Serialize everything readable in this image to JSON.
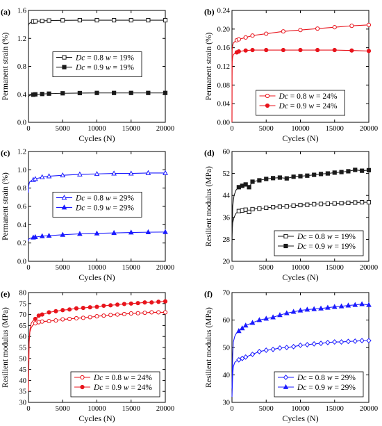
{
  "figure": {
    "colors": {
      "black": "#1a1a1a",
      "red": "#e8141c",
      "blue": "#1a1aff"
    }
  },
  "chart_data": [
    {
      "panel": "(a)",
      "type": "line",
      "xlabel": "Cycles (N)",
      "ylabel": "Permanent strain (%)",
      "xlim": [
        0,
        20000
      ],
      "ylim": [
        0.0,
        1.6
      ],
      "xticks": [
        "0",
        "5000",
        "10000",
        "15000",
        "20000"
      ],
      "yticks": [
        "0.0",
        "0.4",
        "0.8",
        "1.2",
        "1.6"
      ],
      "legend_position": "center-right",
      "series": [
        {
          "name": "Dc = 0.8 w = 19%",
          "color": "#1a1a1a",
          "marker": "open-square",
          "x": [
            0,
            30,
            100,
            200,
            400,
            700,
            1000,
            2000,
            3000,
            5000,
            7500,
            10000,
            12500,
            15000,
            17500,
            20000
          ],
          "y": [
            1.37,
            1.4,
            1.41,
            1.42,
            1.43,
            1.44,
            1.445,
            1.45,
            1.455,
            1.458,
            1.46,
            1.46,
            1.46,
            1.46,
            1.46,
            1.46
          ]
        },
        {
          "name": "Dc = 0.9 w = 19%",
          "color": "#1a1a1a",
          "marker": "filled-square",
          "x": [
            0,
            30,
            100,
            200,
            400,
            700,
            1000,
            2000,
            3000,
            5000,
            7500,
            10000,
            12500,
            15000,
            17500,
            20000
          ],
          "y": [
            0.35,
            0.37,
            0.38,
            0.385,
            0.39,
            0.395,
            0.4,
            0.405,
            0.41,
            0.415,
            0.418,
            0.42,
            0.42,
            0.42,
            0.42,
            0.42
          ]
        }
      ]
    },
    {
      "panel": "(b)",
      "type": "line",
      "xlabel": "Cycles (N)",
      "ylabel": "Permanent strain (%)",
      "xlim": [
        0,
        20000
      ],
      "ylim": [
        0.0,
        0.24
      ],
      "xticks": [
        "0",
        "5000",
        "10000",
        "15000",
        "20000"
      ],
      "yticks": [
        "0.00",
        "0.04",
        "0.08",
        "0.12",
        "0.16",
        "0.20",
        "0.24"
      ],
      "legend_position": "lower-center",
      "series": [
        {
          "name": "Dc = 0.8 w = 24%",
          "color": "#e8141c",
          "marker": "open-circle",
          "x": [
            0,
            10,
            30,
            100,
            200,
            400,
            700,
            1000,
            2000,
            3000,
            5000,
            7500,
            10000,
            12500,
            15000,
            17500,
            20000
          ],
          "y": [
            0.0,
            0.12,
            0.155,
            0.165,
            0.17,
            0.173,
            0.176,
            0.178,
            0.182,
            0.186,
            0.19,
            0.195,
            0.198,
            0.201,
            0.204,
            0.207,
            0.209
          ]
        },
        {
          "name": "Dc = 0.9 w = 24%",
          "color": "#e8141c",
          "marker": "filled-circle",
          "x": [
            0,
            10,
            30,
            100,
            200,
            400,
            700,
            1000,
            2000,
            3000,
            5000,
            7500,
            10000,
            12500,
            15000,
            17500,
            20000
          ],
          "y": [
            0.0,
            0.1,
            0.13,
            0.14,
            0.145,
            0.148,
            0.15,
            0.152,
            0.154,
            0.155,
            0.155,
            0.155,
            0.155,
            0.155,
            0.155,
            0.154,
            0.153
          ]
        }
      ]
    },
    {
      "panel": "(c)",
      "type": "line",
      "xlabel": "Cycles (N)",
      "ylabel": "Permanent strain (%)",
      "xlim": [
        0,
        20000
      ],
      "ylim": [
        0.0,
        1.2
      ],
      "xticks": [
        "0",
        "5000",
        "10000",
        "15000",
        "20000"
      ],
      "yticks": [
        "0.0",
        "0.2",
        "0.4",
        "0.6",
        "0.8",
        "1.0",
        "1.2"
      ],
      "legend_position": "center-right",
      "series": [
        {
          "name": "Dc = 0.8 w = 29%",
          "color": "#1a1aff",
          "marker": "open-triangle",
          "x": [
            0,
            30,
            100,
            200,
            400,
            700,
            1000,
            2000,
            3000,
            5000,
            7500,
            10000,
            12500,
            15000,
            17500,
            20000
          ],
          "y": [
            0.75,
            0.82,
            0.85,
            0.87,
            0.88,
            0.89,
            0.9,
            0.92,
            0.93,
            0.94,
            0.95,
            0.955,
            0.96,
            0.96,
            0.965,
            0.965
          ]
        },
        {
          "name": "Dc = 0.9 w = 29%",
          "color": "#1a1aff",
          "marker": "filled-triangle",
          "x": [
            0,
            30,
            100,
            200,
            400,
            700,
            1000,
            2000,
            3000,
            5000,
            7500,
            10000,
            12500,
            15000,
            17500,
            20000
          ],
          "y": [
            0.22,
            0.24,
            0.245,
            0.25,
            0.255,
            0.26,
            0.265,
            0.275,
            0.28,
            0.29,
            0.3,
            0.305,
            0.31,
            0.315,
            0.318,
            0.32
          ]
        }
      ]
    },
    {
      "panel": "(d)",
      "type": "line",
      "xlabel": "Cycles (N)",
      "ylabel": "Resilient modulus (MPa)",
      "xlim": [
        0,
        20000
      ],
      "ylim": [
        20,
        60
      ],
      "xticks": [
        "0",
        "5000",
        "10000",
        "15000",
        "20000"
      ],
      "yticks": [
        "20",
        "28",
        "36",
        "44",
        "52",
        "60"
      ],
      "legend_position": "lower-right",
      "series": [
        {
          "name": "Dc = 0.8 w = 19%",
          "color": "#1a1a1a",
          "marker": "open-square",
          "x": [
            0,
            100,
            300,
            600,
            1000,
            1500,
            2000,
            2500,
            3000,
            4000,
            5000,
            6000,
            7000,
            8000,
            9000,
            10000,
            11000,
            12000,
            13000,
            14000,
            15000,
            16000,
            17000,
            18000,
            19000,
            20000
          ],
          "y": [
            30,
            34,
            36,
            37.5,
            38.3,
            38.5,
            38.8,
            38,
            39,
            39.2,
            39.5,
            39.7,
            39.9,
            40,
            40.3,
            40.5,
            40.6,
            40.8,
            40.9,
            41,
            41.1,
            41.2,
            41.3,
            41.4,
            41.5,
            41.5
          ]
        },
        {
          "name": "Dc = 0.9 w = 19%",
          "color": "#1a1a1a",
          "marker": "filled-square",
          "x": [
            0,
            100,
            300,
            600,
            1000,
            1500,
            2000,
            2500,
            3000,
            4000,
            5000,
            6000,
            7000,
            8000,
            9000,
            10000,
            11000,
            12000,
            13000,
            14000,
            15000,
            16000,
            17000,
            18000,
            19000,
            20000
          ],
          "y": [
            26,
            40,
            44,
            46,
            47,
            47.5,
            48,
            47,
            49,
            49.5,
            50,
            50.3,
            50.5,
            50.2,
            50.8,
            51,
            51.2,
            51.5,
            51.8,
            52,
            52.3,
            52.5,
            52.8,
            53.3,
            53,
            53.2
          ]
        }
      ]
    },
    {
      "panel": "(e)",
      "type": "line",
      "xlabel": "Cycles (N)",
      "ylabel": "Resilient modulus (MPa)",
      "xlim": [
        0,
        20000
      ],
      "ylim": [
        30,
        80
      ],
      "xticks": [
        "0",
        "5000",
        "10000",
        "15000",
        "20000"
      ],
      "yticks": [
        "30",
        "35",
        "40",
        "45",
        "50",
        "55",
        "60",
        "65",
        "70",
        "75",
        "80"
      ],
      "legend_position": "lower-right",
      "series": [
        {
          "name": "Dc = 0.8 w = 24%",
          "color": "#e8141c",
          "marker": "open-circle",
          "x": [
            0,
            100,
            200,
            400,
            600,
            1000,
            1500,
            2000,
            3000,
            4000,
            5000,
            6000,
            7000,
            8000,
            9000,
            10000,
            11000,
            12000,
            13000,
            14000,
            15000,
            16000,
            17000,
            18000,
            19000,
            20000
          ],
          "y": [
            49,
            58,
            62,
            64,
            65,
            66,
            66.5,
            66.8,
            67,
            67.3,
            67.8,
            68,
            68.3,
            68.5,
            68.8,
            69.2,
            69.5,
            69.8,
            70,
            70.2,
            70.5,
            70.6,
            70.8,
            71,
            71,
            71
          ]
        },
        {
          "name": "Dc = 0.9 w = 24%",
          "color": "#e8141c",
          "marker": "filled-circle",
          "x": [
            0,
            100,
            200,
            400,
            600,
            1000,
            1500,
            2000,
            3000,
            4000,
            5000,
            6000,
            7000,
            8000,
            9000,
            10000,
            11000,
            12000,
            13000,
            14000,
            15000,
            16000,
            17000,
            18000,
            19000,
            20000
          ],
          "y": [
            35,
            57,
            63,
            66,
            67,
            68,
            69.5,
            70,
            71,
            71.5,
            72,
            72.3,
            72.8,
            73,
            73.3,
            73.5,
            74,
            74.2,
            74.5,
            74.8,
            75,
            75.2,
            75.5,
            75.5,
            75.8,
            76
          ]
        }
      ]
    },
    {
      "panel": "(f)",
      "type": "line",
      "xlabel": "Cycles (N)",
      "ylabel": "Resilient modulus (MPa)",
      "xlim": [
        0,
        20000
      ],
      "ylim": [
        30,
        70
      ],
      "xticks": [
        "0",
        "5000",
        "10000",
        "15000",
        "20000"
      ],
      "yticks": [
        "30",
        "40",
        "50",
        "60",
        "70"
      ],
      "legend_position": "lower-right",
      "series": [
        {
          "name": "Dc = 0.8 w = 29%",
          "color": "#1a1aff",
          "marker": "open-diamond",
          "x": [
            0,
            100,
            200,
            400,
            600,
            1000,
            1500,
            2000,
            3000,
            4000,
            5000,
            6000,
            7000,
            8000,
            9000,
            10000,
            11000,
            12000,
            13000,
            14000,
            15000,
            16000,
            17000,
            18000,
            19000,
            20000
          ],
          "y": [
            32,
            40,
            43,
            44.5,
            45,
            45.5,
            46,
            46.5,
            47.5,
            48.5,
            49,
            49.3,
            49.8,
            50,
            50.3,
            50.8,
            51,
            51.3,
            51.5,
            51.8,
            52,
            52,
            52.2,
            52.3,
            52.5,
            52.5
          ]
        },
        {
          "name": "Dc = 0.9 w = 29%",
          "color": "#1a1aff",
          "marker": "filled-triangle",
          "x": [
            0,
            100,
            200,
            400,
            600,
            1000,
            1500,
            2000,
            3000,
            4000,
            5000,
            6000,
            7000,
            8000,
            9000,
            10000,
            11000,
            12000,
            13000,
            14000,
            15000,
            16000,
            17000,
            18000,
            19000,
            20000
          ],
          "y": [
            35,
            47,
            52,
            54,
            55,
            56,
            57,
            58,
            59,
            60,
            60.5,
            61,
            61.8,
            62.5,
            63,
            63.5,
            63.8,
            64,
            64.2,
            64.5,
            64.8,
            65,
            65.3,
            65.5,
            65.8,
            65.5
          ]
        }
      ]
    }
  ]
}
